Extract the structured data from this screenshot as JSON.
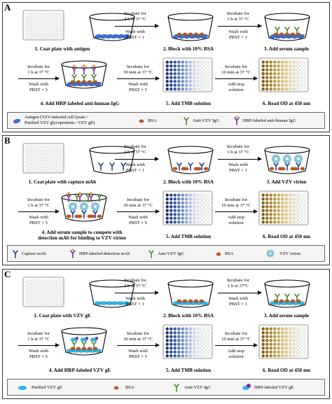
{
  "panels": [
    {
      "letter": "A",
      "steps": [
        "1. Coat plate with antigen",
        "2. Block with 10% BSA",
        "3. Add serum sample",
        "4. Add HRP-labeled anti-human IgG",
        "5. Add TMB solution",
        "6. Read OD at 450 nm"
      ],
      "arrows": [
        {
          "top": "Incubate for\n2 h at 37 °C",
          "bottom": "Wash with\nPBST × 1"
        },
        {
          "top": "Incubate for\n1 h at 37 °C",
          "bottom": "Wash with\nPBST × 1"
        },
        {
          "top": "Incubate for\n1 h at 37 °C",
          "bottom": "Wash with\nPBST × 5"
        },
        {
          "top": "Incubate for\n30 min at 37 °C",
          "bottom": "Wash with\nPBST × 5"
        },
        {
          "top": "Incubate for\n10 min at 37 °C",
          "bottom": "Add stop\nsolution"
        }
      ],
      "legend": [
        "Antigen (VZV-infected cell lysate /\nPurified VZV glycoproteins / VZV gE)",
        "BSA",
        "Anti-VZV IgG",
        "HRP-labeled anti-human IgG"
      ]
    },
    {
      "letter": "B",
      "steps": [
        "1. Coat plate with capture mAb",
        "2. Block with 10% BSA",
        "3. Add VZV virion",
        "4. Add serum sample to compete with\ndetection mAb for binding to VZV virion",
        "5. Add TMB solution",
        "6. Read OD at 450 nm"
      ],
      "arrows": [
        {
          "top": "Incubate for\n2 h at 37 °C",
          "bottom": "Wash with\nPBST × 1"
        },
        {
          "top": "Incubate for\n1 h at 37 °C",
          "bottom": "Wash with\nPBST × 1"
        },
        {
          "top": "Incubate for\n1 h at 37 °C",
          "bottom": "Wash with\nPBST × 5"
        },
        {
          "top": "Incubate for\n30 min at 37 °C",
          "bottom": "Wash with\nPBST × 5"
        },
        {
          "top": "Incubate for\n10 min at 37 °C",
          "bottom": "Add stop\nsolution"
        }
      ],
      "legend": [
        "Capture mAb",
        "HRP-labeled detection mAb",
        "Anti-VZV IgG",
        "BSA",
        "VZV virion"
      ]
    },
    {
      "letter": "C",
      "steps": [
        "1. Coat plate with VZV gE",
        "2. Block with 10% BSA",
        "3. Add serum sample",
        "4. Add HRP-labeled VZV gE",
        "5. Add TMB solution",
        "6. Read OD at 450 nm"
      ],
      "arrows": [
        {
          "top": "Incubate for\n2 h at 37 °C",
          "bottom": "Wash with\nPBST × 1"
        },
        {
          "top": "Incubate for\n1 h at 37°C",
          "bottom": "Wash with\nPBST × 1"
        },
        {
          "top": "Incubate for\n1 h at 37 °C",
          "bottom": "Wash with\nPBST × 5"
        },
        {
          "top": "Incubate for\n30 min at 37 °C",
          "bottom": "Wash with\nPBST × 5"
        },
        {
          "top": "Incubate for\n10 min at 37 °C",
          "bottom": "Add stop\nsolution"
        }
      ],
      "legend": [
        "Purified VZV gE",
        "BSA",
        "Anti-VZV IgG",
        "HRP-labeled VZV gE"
      ]
    }
  ],
  "colors": {
    "antigen": "#3a6fd6",
    "bsa": "#c0541b",
    "igg": "#4a8a2a",
    "hrp": "#7b2fa0",
    "virion": "#8fd3e6",
    "capture": "#2c3f86",
    "tmb": "#2a4fa8",
    "stopped": "#c89a2c"
  }
}
